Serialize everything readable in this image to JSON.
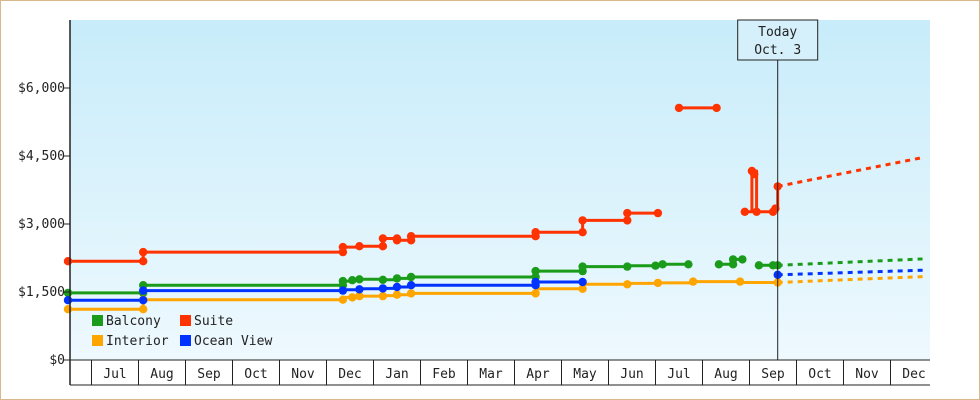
{
  "chart_data": {
    "type": "line",
    "title": "",
    "xlabel": "",
    "ylabel": "",
    "ylim": [
      0,
      7500
    ],
    "grid": false,
    "legend_position": "bottom-left",
    "y_ticks": [
      {
        "value": 0,
        "label": "$0"
      },
      {
        "value": 1500,
        "label": "$1,500"
      },
      {
        "value": 3000,
        "label": "$3,000"
      },
      {
        "value": 4500,
        "label": "$4,500"
      },
      {
        "value": 6000,
        "label": "$6,000"
      }
    ],
    "x_domain": [
      0,
      18.2
    ],
    "month_ticks": [
      "Jul",
      "Aug",
      "Sep",
      "Oct",
      "Nov",
      "Dec",
      "Jan",
      "Feb",
      "Mar",
      "Apr",
      "May",
      "Jun",
      "Jul",
      "Aug",
      "Sep",
      "Oct",
      "Nov",
      "Dec"
    ],
    "today": {
      "line1": "Today",
      "line2": "Oct. 3",
      "x": 15.1
    },
    "series": [
      {
        "name": "Suite",
        "color": "#ff3300",
        "segments": [
          [
            [
              0.0,
              2180
            ],
            [
              1.6,
              2180
            ],
            [
              1.6,
              2380
            ],
            [
              5.85,
              2380
            ],
            [
              5.85,
              2490
            ],
            [
              6.2,
              2490
            ],
            [
              6.2,
              2510
            ],
            [
              6.7,
              2510
            ],
            [
              6.7,
              2680
            ],
            [
              7.0,
              2680
            ],
            [
              7.0,
              2640
            ],
            [
              7.3,
              2640
            ],
            [
              7.3,
              2730
            ],
            [
              9.95,
              2730
            ],
            [
              9.95,
              2820
            ],
            [
              10.95,
              2820
            ],
            [
              10.95,
              3080
            ],
            [
              11.9,
              3080
            ],
            [
              11.9,
              3240
            ],
            [
              12.55,
              3240
            ]
          ],
          [
            [
              13.0,
              5560
            ],
            [
              13.8,
              5560
            ]
          ],
          [
            [
              14.4,
              3270
            ],
            [
              14.55,
              3270
            ],
            [
              14.55,
              4170
            ],
            [
              14.65,
              4170
            ],
            [
              14.65,
              3270
            ],
            [
              15.0,
              3270
            ],
            [
              15.0,
              3340
            ],
            [
              15.1,
              3340
            ],
            [
              15.1,
              3830
            ]
          ]
        ],
        "points": [
          [
            0.0,
            2180
          ],
          [
            1.6,
            2180
          ],
          [
            1.6,
            2380
          ],
          [
            5.85,
            2380
          ],
          [
            5.85,
            2490
          ],
          [
            6.2,
            2510
          ],
          [
            6.7,
            2510
          ],
          [
            6.7,
            2680
          ],
          [
            7.0,
            2680
          ],
          [
            7.0,
            2640
          ],
          [
            7.3,
            2640
          ],
          [
            7.3,
            2730
          ],
          [
            9.95,
            2730
          ],
          [
            9.95,
            2820
          ],
          [
            10.95,
            2820
          ],
          [
            10.95,
            3080
          ],
          [
            11.9,
            3080
          ],
          [
            11.9,
            3240
          ],
          [
            12.55,
            3240
          ],
          [
            13.0,
            5560
          ],
          [
            13.8,
            5560
          ],
          [
            14.4,
            3270
          ],
          [
            14.55,
            4170
          ],
          [
            14.6,
            4100
          ],
          [
            14.65,
            3270
          ],
          [
            15.0,
            3270
          ],
          [
            15.05,
            3340
          ],
          [
            15.1,
            3830
          ]
        ],
        "projection": [
          [
            15.1,
            3830
          ],
          [
            18.2,
            4470
          ]
        ]
      },
      {
        "name": "Balcony",
        "color": "#1a9c1a",
        "segments": [
          [
            [
              0.0,
              1480
            ],
            [
              1.6,
              1480
            ],
            [
              1.6,
              1650
            ],
            [
              5.85,
              1650
            ],
            [
              5.85,
              1740
            ],
            [
              6.05,
              1740
            ],
            [
              6.05,
              1760
            ],
            [
              6.2,
              1760
            ],
            [
              6.2,
              1780
            ],
            [
              6.7,
              1780
            ],
            [
              6.7,
              1770
            ],
            [
              7.0,
              1770
            ],
            [
              7.0,
              1800
            ],
            [
              7.3,
              1800
            ],
            [
              7.3,
              1830
            ],
            [
              9.95,
              1830
            ],
            [
              9.95,
              1960
            ],
            [
              10.95,
              1960
            ],
            [
              10.95,
              2060
            ],
            [
              11.9,
              2060
            ],
            [
              11.9,
              2080
            ],
            [
              12.55,
              2080
            ],
            [
              12.55,
              2110
            ],
            [
              13.2,
              2110
            ]
          ],
          [
            [
              13.85,
              2110
            ],
            [
              14.15,
              2110
            ],
            [
              14.15,
              2220
            ],
            [
              14.35,
              2220
            ]
          ],
          [
            [
              14.7,
              2090
            ],
            [
              15.1,
              2090
            ]
          ]
        ],
        "points": [
          [
            0.0,
            1480
          ],
          [
            1.6,
            1480
          ],
          [
            1.6,
            1650
          ],
          [
            5.85,
            1650
          ],
          [
            5.85,
            1740
          ],
          [
            6.05,
            1760
          ],
          [
            6.2,
            1780
          ],
          [
            6.7,
            1770
          ],
          [
            7.0,
            1800
          ],
          [
            7.3,
            1830
          ],
          [
            9.95,
            1830
          ],
          [
            9.95,
            1960
          ],
          [
            10.95,
            1960
          ],
          [
            10.95,
            2060
          ],
          [
            11.9,
            2060
          ],
          [
            12.5,
            2080
          ],
          [
            12.65,
            2110
          ],
          [
            13.2,
            2110
          ],
          [
            13.85,
            2110
          ],
          [
            14.15,
            2110
          ],
          [
            14.15,
            2220
          ],
          [
            14.35,
            2220
          ],
          [
            14.7,
            2090
          ],
          [
            15.0,
            2090
          ],
          [
            15.1,
            2090
          ]
        ],
        "projection": [
          [
            15.1,
            2090
          ],
          [
            18.2,
            2230
          ]
        ]
      },
      {
        "name": "Interior",
        "color": "#ffa500",
        "segments": [
          [
            [
              0.0,
              1120
            ],
            [
              1.6,
              1120
            ],
            [
              1.6,
              1330
            ],
            [
              5.85,
              1330
            ],
            [
              5.85,
              1380
            ],
            [
              6.05,
              1380
            ],
            [
              6.05,
              1410
            ],
            [
              6.7,
              1410
            ],
            [
              6.7,
              1420
            ],
            [
              7.0,
              1420
            ],
            [
              7.0,
              1440
            ],
            [
              7.3,
              1440
            ],
            [
              7.3,
              1470
            ],
            [
              9.95,
              1470
            ],
            [
              9.95,
              1570
            ],
            [
              10.95,
              1570
            ],
            [
              10.95,
              1670
            ],
            [
              11.9,
              1670
            ],
            [
              11.9,
              1690
            ],
            [
              12.55,
              1690
            ],
            [
              12.55,
              1700
            ],
            [
              13.3,
              1700
            ],
            [
              13.3,
              1730
            ],
            [
              14.3,
              1730
            ],
            [
              14.3,
              1710
            ],
            [
              15.1,
              1710
            ]
          ]
        ],
        "points": [
          [
            0.0,
            1120
          ],
          [
            1.6,
            1120
          ],
          [
            1.6,
            1330
          ],
          [
            5.85,
            1330
          ],
          [
            6.05,
            1380
          ],
          [
            6.2,
            1410
          ],
          [
            6.7,
            1410
          ],
          [
            7.0,
            1440
          ],
          [
            7.3,
            1470
          ],
          [
            9.95,
            1470
          ],
          [
            10.95,
            1570
          ],
          [
            11.9,
            1670
          ],
          [
            12.55,
            1700
          ],
          [
            13.3,
            1730
          ],
          [
            14.3,
            1730
          ],
          [
            15.1,
            1710
          ]
        ],
        "projection": [
          [
            15.1,
            1710
          ],
          [
            18.2,
            1840
          ]
        ]
      },
      {
        "name": "Ocean View",
        "color": "#0033ff",
        "segments": [
          [
            [
              0.0,
              1320
            ],
            [
              1.6,
              1320
            ],
            [
              1.6,
              1530
            ],
            [
              5.85,
              1530
            ],
            [
              5.85,
              1550
            ],
            [
              6.2,
              1550
            ],
            [
              6.2,
              1570
            ],
            [
              6.7,
              1570
            ],
            [
              6.7,
              1580
            ],
            [
              7.0,
              1580
            ],
            [
              7.0,
              1610
            ],
            [
              7.3,
              1610
            ],
            [
              7.3,
              1650
            ],
            [
              9.95,
              1650
            ],
            [
              9.95,
              1720
            ],
            [
              10.95,
              1720
            ]
          ]
        ],
        "points": [
          [
            0.0,
            1320
          ],
          [
            1.6,
            1320
          ],
          [
            1.6,
            1530
          ],
          [
            5.85,
            1530
          ],
          [
            6.2,
            1560
          ],
          [
            6.7,
            1580
          ],
          [
            7.0,
            1610
          ],
          [
            7.3,
            1650
          ],
          [
            9.95,
            1650
          ],
          [
            9.95,
            1720
          ],
          [
            10.95,
            1720
          ],
          [
            15.1,
            1880
          ]
        ],
        "projection": [
          [
            15.1,
            1880
          ],
          [
            18.2,
            1980
          ]
        ]
      }
    ],
    "legend": [
      {
        "name": "Balcony",
        "color": "#1a9c1a"
      },
      {
        "name": "Suite",
        "color": "#ff3300"
      },
      {
        "name": "Interior",
        "color": "#ffa500"
      },
      {
        "name": "Ocean View",
        "color": "#0033ff"
      }
    ]
  }
}
